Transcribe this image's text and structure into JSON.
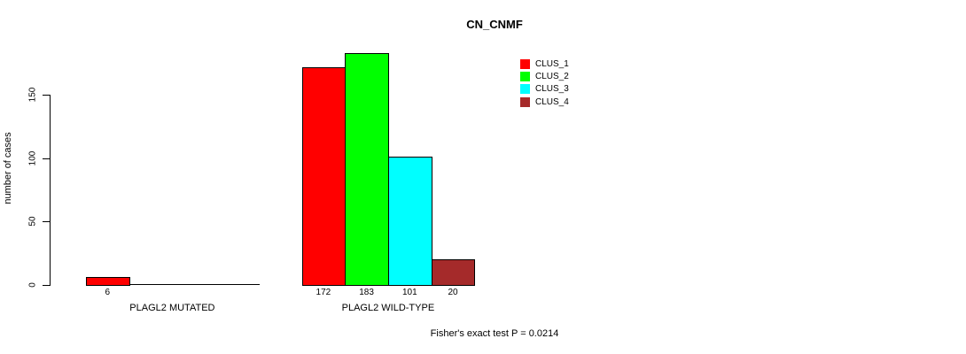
{
  "chart_data": {
    "type": "bar",
    "title": "CN_CNMF",
    "ylabel": "number of cases",
    "xlabel": "",
    "yticks": [
      0,
      50,
      100,
      150
    ],
    "ylim": [
      0,
      190
    ],
    "grid": false,
    "legend_position": "top-right",
    "categories": [
      "PLAGL2 MUTATED",
      "PLAGL2 WILD-TYPE"
    ],
    "series": [
      {
        "name": "CLUS_1",
        "color": "#FF0000",
        "values": [
          6,
          172
        ]
      },
      {
        "name": "CLUS_2",
        "color": "#00FF00",
        "values": [
          0,
          183
        ]
      },
      {
        "name": "CLUS_3",
        "color": "#00FFFF",
        "values": [
          0,
          101
        ]
      },
      {
        "name": "CLUS_4",
        "color": "#A52A2A",
        "values": [
          0,
          20
        ]
      }
    ],
    "bar_value_labels": [
      [
        "6",
        "",
        "",
        ""
      ],
      [
        "172",
        "183",
        "101",
        "20"
      ]
    ],
    "footnote": "Fisher's exact test P = 0.0214",
    "bar_border_color": "#000000",
    "text_color": "#000000",
    "background_color": "#FFFFFF"
  }
}
